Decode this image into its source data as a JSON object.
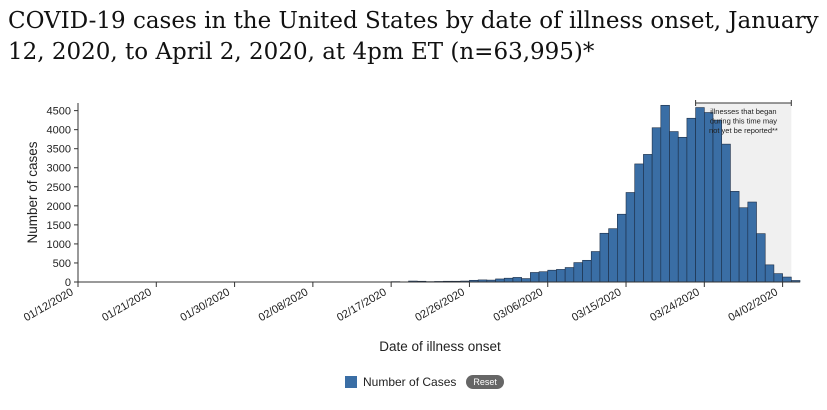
{
  "title": "COVID-19 cases in the United States by date of illness onset, January 12, 2020, to April 2, 2020, at 4pm ET (n=63,995)*",
  "colors": {
    "bar": "#3a6ea5",
    "bar_stroke": "#1b2c44",
    "shade": "#f0f0f0"
  },
  "legend": {
    "label": "Number of Cases",
    "reset_label": "Reset"
  },
  "chart_data": {
    "type": "bar",
    "xlabel": "Date of illness onset",
    "ylabel": "Number of cases",
    "ylim": [
      0,
      4700
    ],
    "yticks": [
      0,
      500,
      1000,
      1500,
      2000,
      2500,
      3000,
      3500,
      4000,
      4500
    ],
    "grid": false,
    "x_start": "01/12/2020",
    "xtick_labels": [
      "01/12/2020",
      "01/21/2020",
      "01/30/2020",
      "02/08/2020",
      "02/17/2020",
      "02/26/2020",
      "03/06/2020",
      "03/15/2020",
      "03/24/2020",
      "04/02/2020"
    ],
    "shaded_annotation": {
      "start": "03/23/2020",
      "end": "04/02/2020",
      "text": [
        "illnesses that began",
        "during this time may",
        "not yet be reported**"
      ]
    },
    "series": [
      {
        "name": "Number of Cases",
        "values": [
          0,
          0,
          0,
          0,
          0,
          0,
          0,
          0,
          0,
          0,
          0,
          0,
          0,
          0,
          0,
          0,
          0,
          0,
          0,
          0,
          0,
          0,
          0,
          0,
          0,
          0,
          0,
          0,
          0,
          0,
          0,
          0,
          0,
          0,
          0,
          0,
          10,
          5,
          25,
          20,
          10,
          15,
          20,
          20,
          25,
          45,
          55,
          50,
          80,
          100,
          120,
          90,
          250,
          270,
          310,
          330,
          380,
          510,
          570,
          800,
          1280,
          1400,
          1780,
          2350,
          3100,
          3350,
          4050,
          4640,
          3950,
          3800,
          4300,
          4580,
          4450,
          4250,
          3620,
          2380,
          1950,
          2100,
          1270,
          450,
          220,
          130,
          40
        ]
      }
    ]
  }
}
